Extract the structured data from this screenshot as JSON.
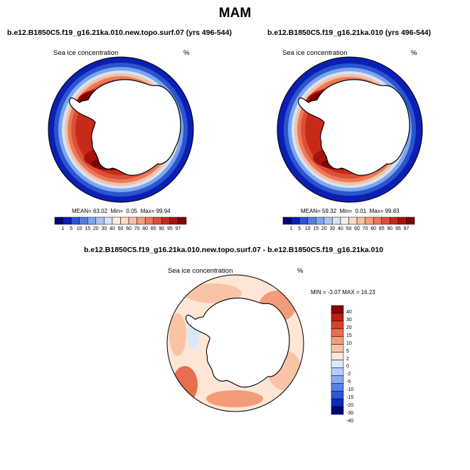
{
  "page": {
    "title": "MAM"
  },
  "colors": {
    "seq_palette": [
      "#00007a",
      "#0b1fb4",
      "#2a55cf",
      "#4f7fe0",
      "#7ea5ec",
      "#a9c6f3",
      "#d4e3f8",
      "#f7eee6",
      "#fbd9c4",
      "#f8bfa2",
      "#f3a07f",
      "#ea7a5a",
      "#dc5035",
      "#c82a19",
      "#a8120e",
      "#810000"
    ],
    "div_palette": [
      "#00007a",
      "#0b2bb8",
      "#2a56d5",
      "#5783e6",
      "#86a9f0",
      "#b4ccf6",
      "#dbe8fa",
      "#fde6d6",
      "#f9c4a6",
      "#f29c7a",
      "#e76e4f",
      "#d6402a",
      "#bd1c10",
      "#8c0000"
    ],
    "land": "#ffffff",
    "coast": "#000000"
  },
  "chart_data": [
    {
      "type": "polar-stereographic-map",
      "panel": "top-left",
      "title": "b.e12.B1850C5.f19_g16.21ka.010.new.topo.surf.07 (yrs 496-544)",
      "variable": "Sea ice concentration",
      "units": "%",
      "stats": {
        "mean_label": "MEAN=",
        "mean": "63.02",
        "min_label": "Min=",
        "min": "0.05",
        "max_label": "Max=",
        "max": "99.94"
      },
      "colorbar": {
        "orientation": "horizontal",
        "levels": [
          "1",
          "5",
          "10",
          "15",
          "20",
          "30",
          "40",
          "50",
          "60",
          "70",
          "80",
          "85",
          "90",
          "95",
          "97"
        ]
      }
    },
    {
      "type": "polar-stereographic-map",
      "panel": "top-right",
      "title": "b.e12.B1850C5.f19_g16.21ka.010 (yrs 496-544)",
      "variable": "Sea ice concentration",
      "units": "%",
      "stats": {
        "mean_label": "MEAN=",
        "mean": "59.32",
        "min_label": "Min=",
        "min": "0.01",
        "max_label": "Max=",
        "max": "99.83"
      },
      "colorbar": {
        "orientation": "horizontal",
        "levels": [
          "1",
          "5",
          "10",
          "15",
          "20",
          "30",
          "40",
          "50",
          "60",
          "70",
          "80",
          "85",
          "90",
          "95",
          "97"
        ]
      }
    },
    {
      "type": "polar-stereographic-map",
      "panel": "bottom",
      "title": "b.e12.B1850C5.f19_g16.21ka.010.new.topo.surf.07 - b.e12.B1850C5.f19_g16.21ka.010",
      "variable": "Sea ice concentration",
      "units": "%",
      "stats": {
        "min_label": "MIN =",
        "min": "-3.07",
        "max_label": "MAX =",
        "max": "16.23"
      },
      "colorbar": {
        "orientation": "vertical",
        "levels": [
          "40",
          "30",
          "20",
          "15",
          "10",
          "5",
          "2",
          "0",
          "-2",
          "-5",
          "-10",
          "-15",
          "-20",
          "-30",
          "-40"
        ]
      }
    }
  ]
}
